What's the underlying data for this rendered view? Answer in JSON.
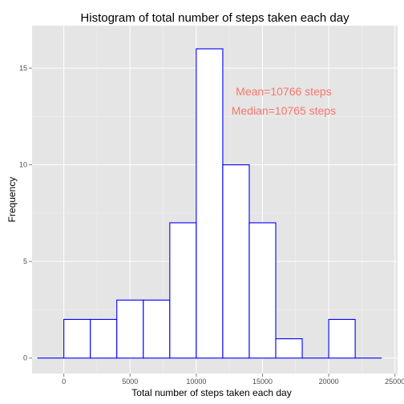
{
  "chart_data": {
    "type": "bar",
    "title": "Histogram of total number of steps taken each day",
    "xlabel": "Total number of steps taken each day",
    "ylabel": "Frequency",
    "xlim": [
      -2400,
      25200
    ],
    "ylim": [
      -0.8,
      17.2
    ],
    "xticks": [
      0,
      5000,
      10000,
      15000,
      20000,
      25000
    ],
    "xtick_labels": [
      "0",
      "5000",
      "10000",
      "15000",
      "20000",
      "25000"
    ],
    "yticks": [
      0,
      5,
      10,
      15
    ],
    "ytick_labels": [
      "0",
      "5",
      "10",
      "15"
    ],
    "grid": true,
    "bins": [
      {
        "x0": -2000,
        "x1": 0,
        "count": 0
      },
      {
        "x0": 0,
        "x1": 2000,
        "count": 2
      },
      {
        "x0": 2000,
        "x1": 4000,
        "count": 2
      },
      {
        "x0": 4000,
        "x1": 6000,
        "count": 3
      },
      {
        "x0": 6000,
        "x1": 8000,
        "count": 3
      },
      {
        "x0": 8000,
        "x1": 10000,
        "count": 7
      },
      {
        "x0": 10000,
        "x1": 12000,
        "count": 16
      },
      {
        "x0": 12000,
        "x1": 14000,
        "count": 10
      },
      {
        "x0": 14000,
        "x1": 16000,
        "count": 7
      },
      {
        "x0": 16000,
        "x1": 18000,
        "count": 1
      },
      {
        "x0": 18000,
        "x1": 20000,
        "count": 0
      },
      {
        "x0": 20000,
        "x1": 22000,
        "count": 2
      },
      {
        "x0": 22000,
        "x1": 24000,
        "count": 0
      }
    ],
    "annotations": [
      {
        "text": "Mean=10766 steps",
        "x": 16600,
        "y": 13.8
      },
      {
        "text": "Median=10765 steps",
        "x": 16600,
        "y": 12.8
      }
    ],
    "colors": {
      "panel_bg": "#e5e5e5",
      "grid_major": "#ffffff",
      "grid_minor": "#f2f2f2",
      "bar_fill": "#ffffff",
      "bar_outline": "#0000ff",
      "annotation": "#f8766d",
      "tick_text": "#4d4d4d",
      "tick_mark": "#7f7f7f"
    }
  }
}
